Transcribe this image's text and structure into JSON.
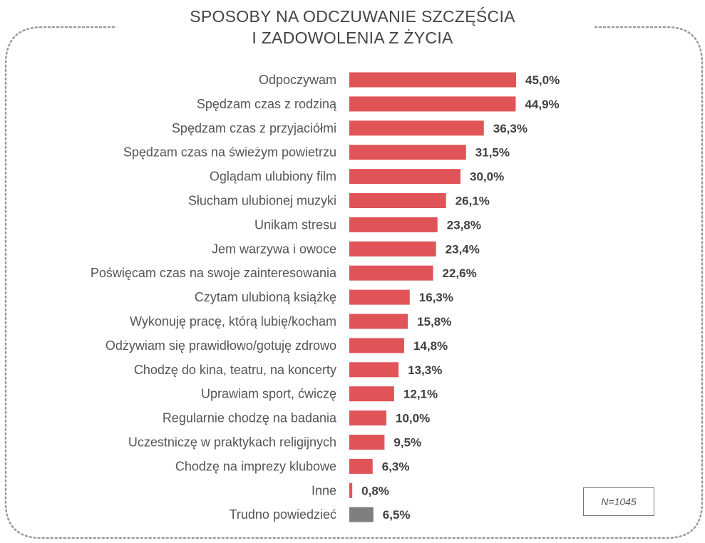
{
  "title_lines": [
    "SPOSOBY NA ODCZUWANIE SZCZĘŚCIA",
    "I ZADOWOLENIA Z ŻYCIA"
  ],
  "note": "N=1045",
  "colors": {
    "bar": "#e05458",
    "bar_other": "#7f7f7f",
    "frame": "#9a9a9a"
  },
  "chart_data": {
    "type": "bar",
    "orientation": "horizontal",
    "title": "SPOSOBY NA ODCZUWANIE SZCZĘŚCIA I ZADOWOLENIA Z ŻYCIA",
    "xlabel": "",
    "ylabel": "",
    "unit": "%",
    "xlim": [
      0,
      50
    ],
    "grid": false,
    "categories": [
      "Odpoczywam",
      "Spędzam czas z rodziną",
      "Spędzam czas z przyjaciółmi",
      "Spędzam czas na świeżym powietrzu",
      "Oglądam ulubiony film",
      "Słucham ulubionej muzyki",
      "Unikam stresu",
      "Jem warzywa i owoce",
      "Poświęcam czas na swoje zainteresowania",
      "Czytam ulubioną książkę",
      "Wykonuję pracę, którą lubię/kocham",
      "Odżywiam się prawidłowo/gotuję zdrowo",
      "Chodzę do kina, teatru, na koncerty",
      "Uprawiam sport, ćwiczę",
      "Regularnie chodzę na badania",
      "Uczestniczę w praktykach religijnych",
      "Chodzę na imprezy klubowe",
      "Inne",
      "Trudno powiedzieć"
    ],
    "values": [
      45.0,
      44.9,
      36.3,
      31.5,
      30.0,
      26.1,
      23.8,
      23.4,
      22.6,
      16.3,
      15.8,
      14.8,
      13.3,
      12.1,
      10.0,
      9.5,
      6.3,
      0.8,
      6.5
    ],
    "value_labels": [
      "45,0%",
      "44,9%",
      "36,3%",
      "31,5%",
      "30,0%",
      "26,1%",
      "23,8%",
      "23,4%",
      "22,6%",
      "16,3%",
      "15,8%",
      "14,8%",
      "13,3%",
      "12,1%",
      "10,0%",
      "9,5%",
      "6,3%",
      "0,8%",
      "6,5%"
    ],
    "bar_colors": [
      "#e05458",
      "#e05458",
      "#e05458",
      "#e05458",
      "#e05458",
      "#e05458",
      "#e05458",
      "#e05458",
      "#e05458",
      "#e05458",
      "#e05458",
      "#e05458",
      "#e05458",
      "#e05458",
      "#e05458",
      "#e05458",
      "#e05458",
      "#e05458",
      "#7f7f7f"
    ]
  }
}
